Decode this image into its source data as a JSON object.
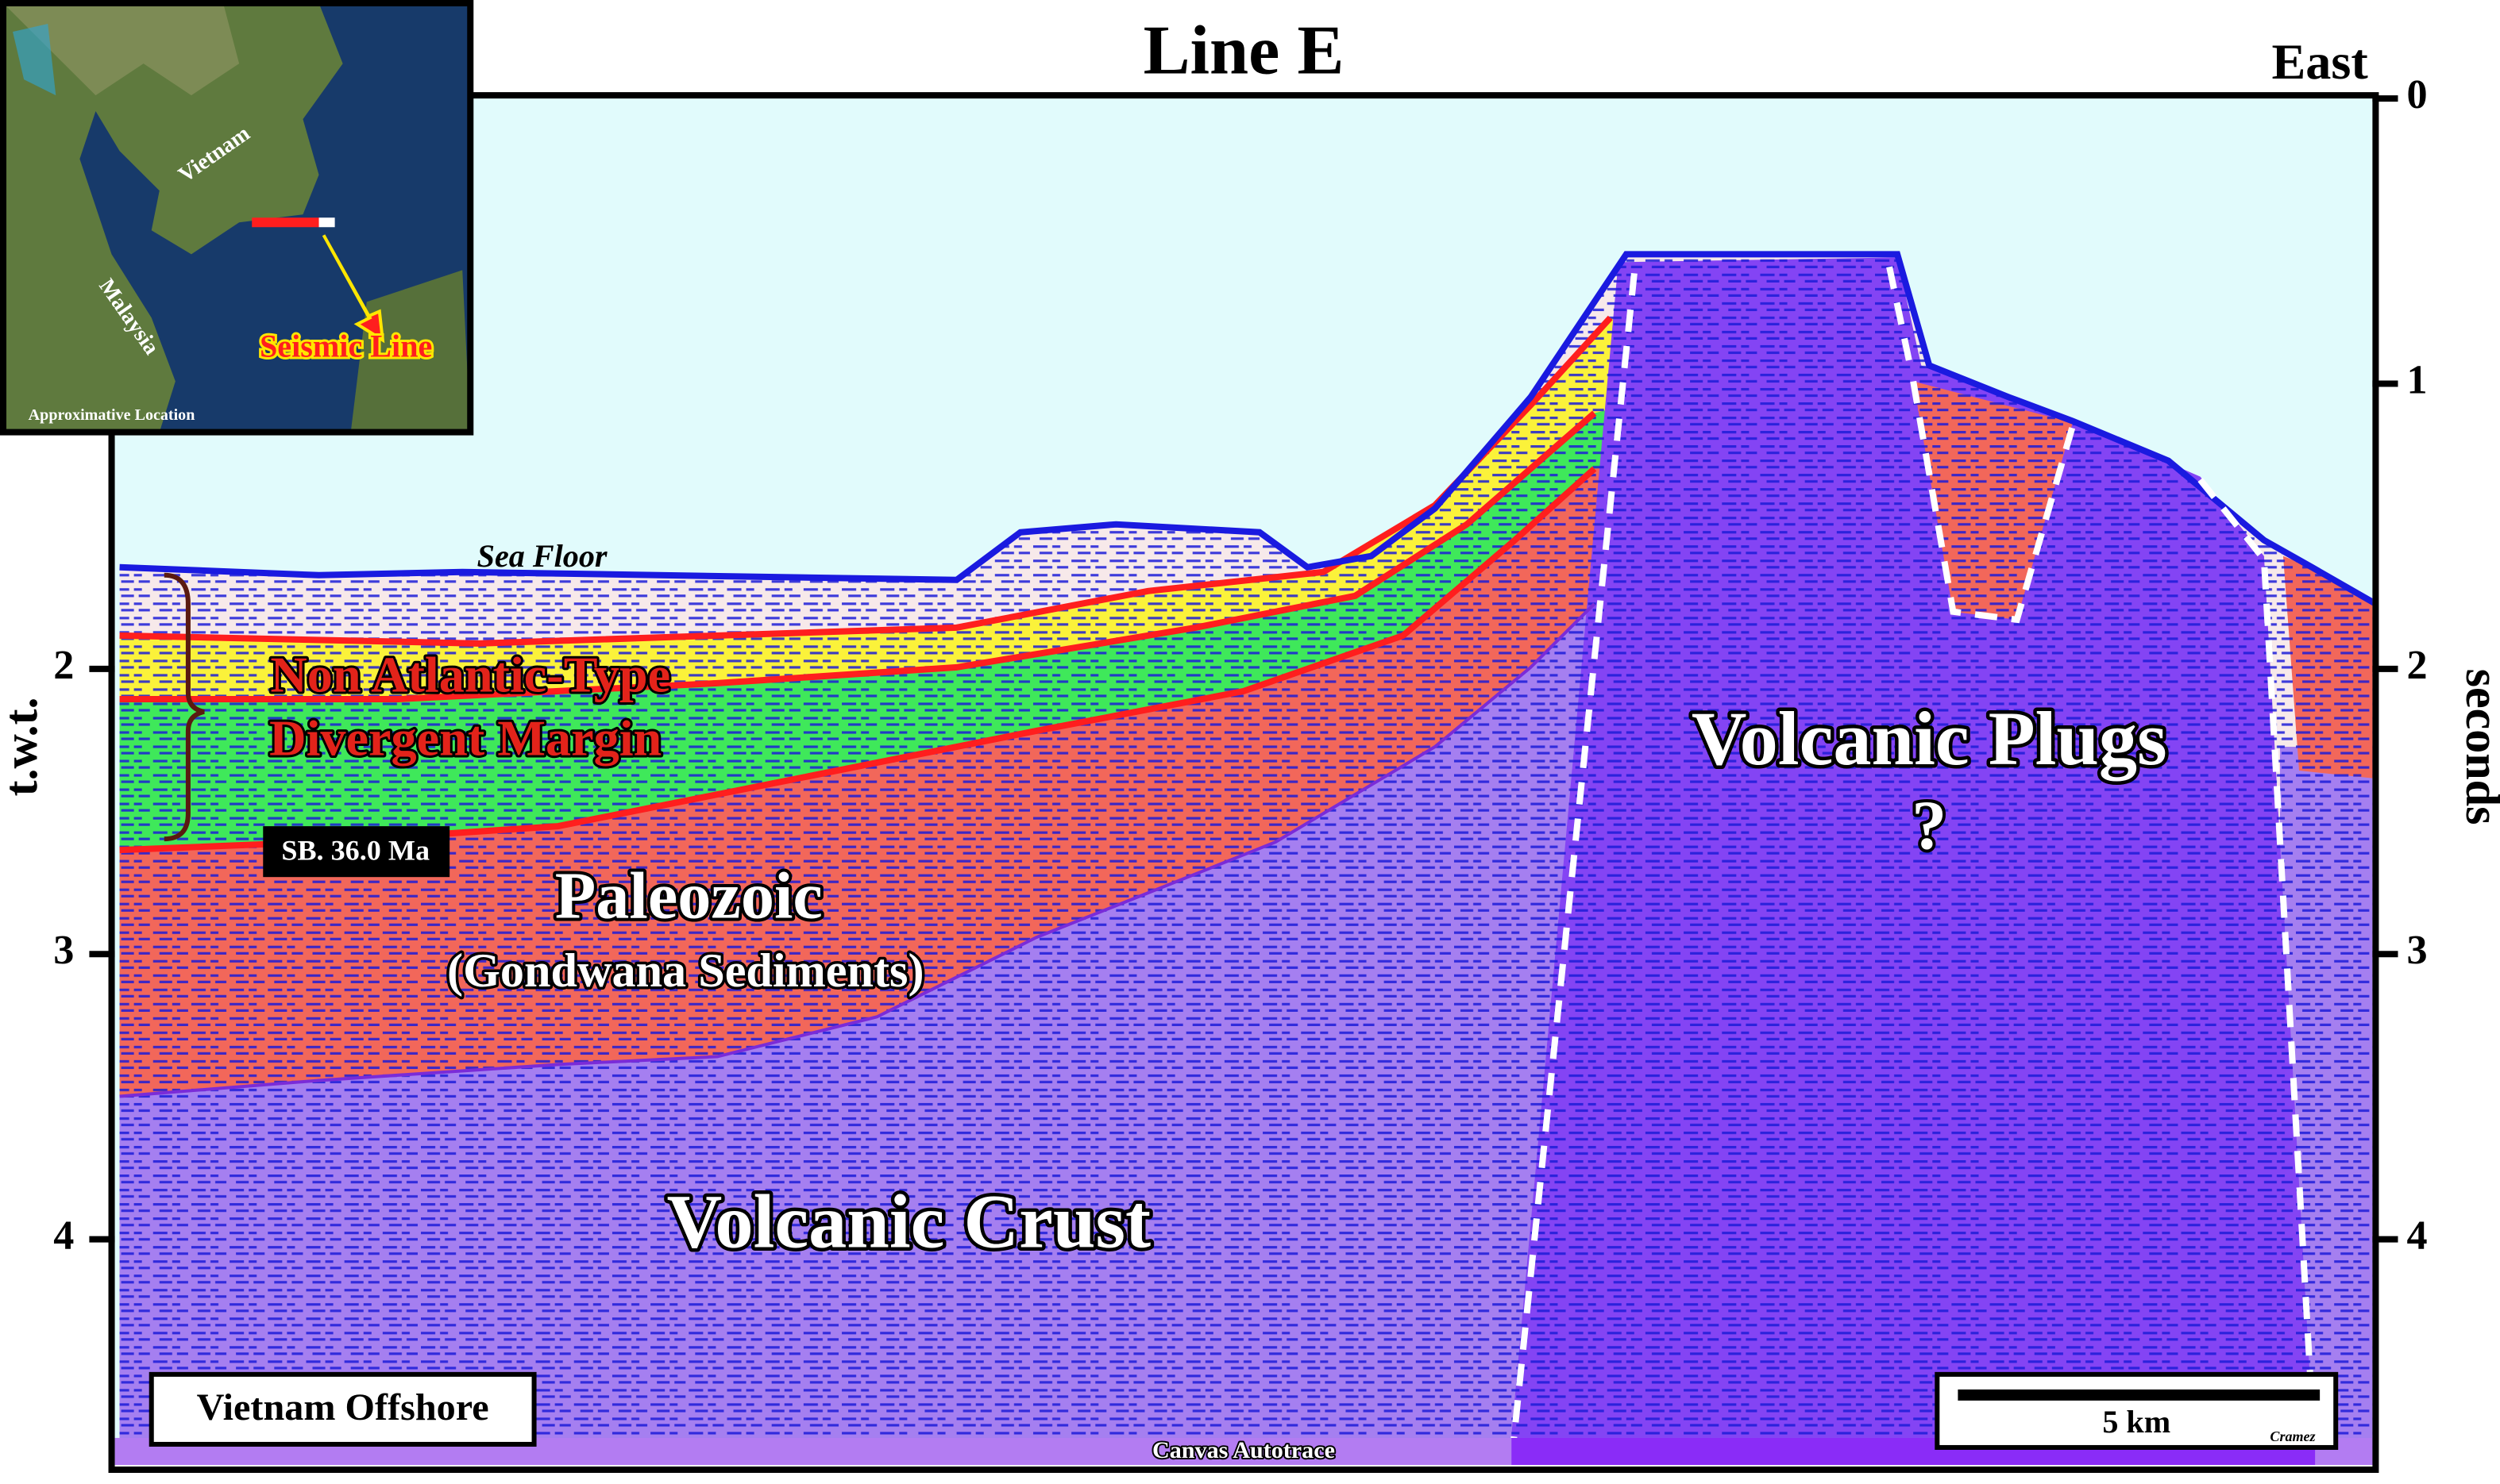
{
  "title": "Line E",
  "direction": "East",
  "axis_left": {
    "label": "t.w.t.",
    "ticks": [
      2,
      3,
      4
    ]
  },
  "axis_right": {
    "label": "seconds",
    "ticks": [
      0,
      1,
      2,
      3,
      4
    ]
  },
  "labels": {
    "sea_floor": "Sea Floor",
    "margin": [
      "Non Atlantic-Type",
      "Divergent Margin"
    ],
    "sequence_boundary": "SB. 36.0 Ma",
    "paleozoic": "Paleozoic",
    "gondwana": "(Gondwana Sediments)",
    "crust": "Volcanic Crust",
    "plugs": "Volcanic Plugs",
    "question": "?",
    "location": "Vietnam Offshore",
    "scale": "5 km",
    "author": "Cramez",
    "credit": "Canvas Autotrace"
  },
  "inset": {
    "vietnam": "Vietnam",
    "malaysia": "Malaysia",
    "seismic_line": "Seismic Line",
    "caption": "Approximative Location"
  }
}
